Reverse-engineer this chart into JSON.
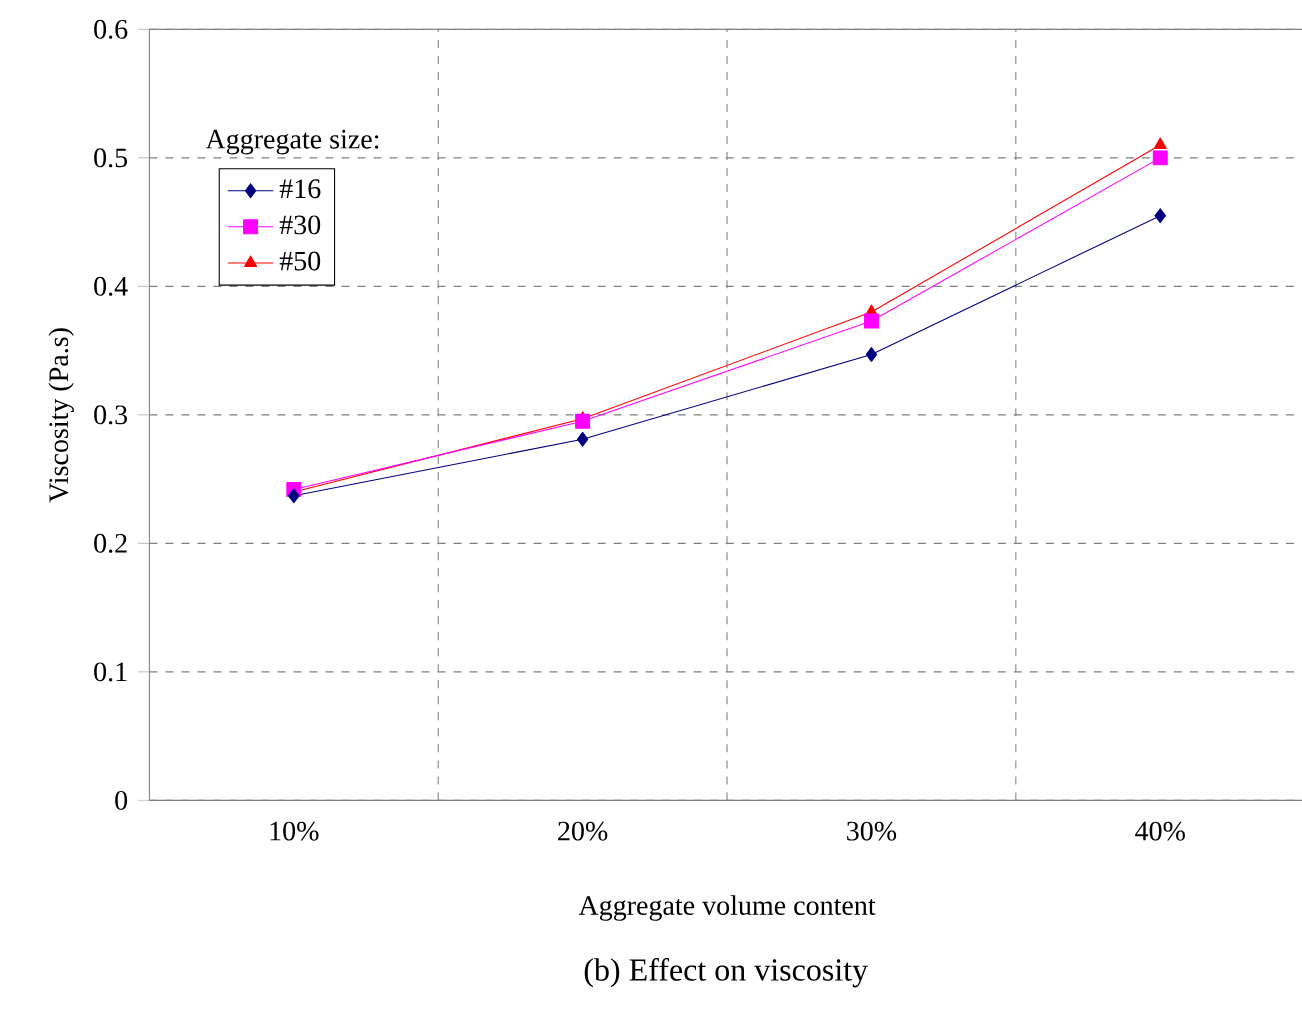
{
  "chart_data": {
    "type": "line",
    "xlabel": "Aggregate volume content",
    "ylabel": "Viscosity (Pa.s)",
    "categories": [
      "10%",
      "20%",
      "30%",
      "40%"
    ],
    "series": [
      {
        "name": "#16",
        "color": "#000080",
        "marker": "diamond",
        "values": [
          0.237,
          0.281,
          0.347,
          0.455
        ]
      },
      {
        "name": "#30",
        "color": "#ff00ff",
        "marker": "square",
        "values": [
          0.242,
          0.295,
          0.373,
          0.5
        ]
      },
      {
        "name": "#50",
        "color": "#ff0000",
        "marker": "triangle",
        "values": [
          0.24,
          0.297,
          0.38,
          0.51
        ]
      }
    ],
    "ylim": [
      0,
      0.6
    ],
    "yticks": [
      0,
      0.1,
      0.2,
      0.3,
      0.4,
      0.5,
      0.6
    ],
    "grid": true,
    "legend": "top left",
    "legend_title": "Aggregate size:",
    "annotations": [
      "(b) Effect on viscosity"
    ]
  }
}
